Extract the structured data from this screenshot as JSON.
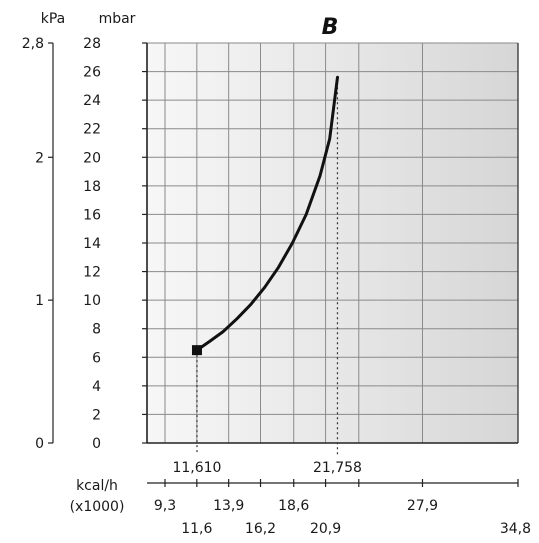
{
  "chart_data": {
    "type": "line",
    "title": "B",
    "y_unit_primary": "mbar",
    "y_unit_secondary": "kPa",
    "x_unit": "kcal/h",
    "x_multiplier": "(x1000)",
    "ylim": [
      0,
      28
    ],
    "y_ticks": [
      0,
      2,
      4,
      6,
      8,
      10,
      12,
      14,
      16,
      18,
      20,
      22,
      24,
      26,
      28
    ],
    "y_tick_labels": [
      "0",
      "2",
      "4",
      "6",
      "8",
      "10",
      "12",
      "14",
      "16",
      "18",
      "20",
      "22",
      "24",
      "26",
      "28"
    ],
    "kpa_ticks": [
      0,
      1,
      2,
      2.8
    ],
    "kpa_tick_labels": [
      "0",
      "1",
      "2",
      "2,8"
    ],
    "x_ticks_upper": [
      9.3,
      13.9,
      18.6,
      23.3,
      27.9
    ],
    "x_tick_labels_upper": [
      "9,3",
      "13,9",
      "18,6",
      "",
      "27,9"
    ],
    "x_ticks_lower": [
      11.6,
      16.2,
      20.9,
      34.8
    ],
    "x_tick_labels_lower": [
      "11,6",
      "16,2",
      "20,9",
      "34,8"
    ],
    "markers": [
      {
        "x": 11.61,
        "label": "11,610"
      },
      {
        "x": 21.758,
        "label": "21,758"
      }
    ],
    "grid": true,
    "series": [
      {
        "x": [
          11.61,
          12.5,
          13.5,
          14.5,
          15.5,
          16.5,
          17.5,
          18.5,
          19.5,
          20.5,
          21.2,
          21.758
        ],
        "values": [
          6.5,
          7.1,
          7.8,
          8.7,
          9.7,
          10.9,
          12.3,
          14.0,
          16.0,
          18.7,
          21.3,
          25.6
        ]
      }
    ]
  }
}
